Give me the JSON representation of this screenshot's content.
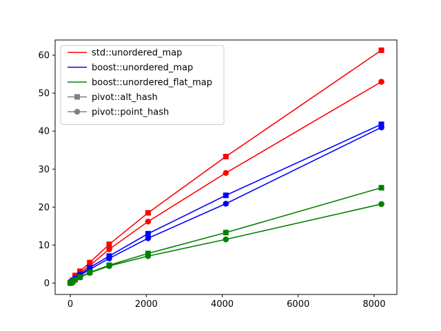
{
  "chart_data": {
    "type": "line",
    "title": "",
    "xlabel": "",
    "ylabel": "",
    "xlim": [
      -400,
      8600
    ],
    "ylim": [
      -3,
      64
    ],
    "xticks": [
      0,
      2000,
      4000,
      6000,
      8000
    ],
    "yticks": [
      0,
      10,
      20,
      30,
      40,
      50,
      60
    ],
    "grid": false,
    "legend_position": "upper-left",
    "x": [
      1,
      2,
      4,
      8,
      16,
      32,
      64,
      128,
      256,
      512,
      1024,
      2048,
      4096,
      8192
    ],
    "series": [
      {
        "implementation": "std::unordered_map",
        "method": "pivot::alt_hash",
        "color": "#ff0000",
        "marker": "square",
        "values": [
          0.02,
          0.03,
          0.05,
          0.08,
          0.15,
          0.35,
          0.75,
          2.0,
          3.1,
          5.4,
          10.2,
          18.5,
          33.3,
          61.3
        ]
      },
      {
        "implementation": "std::unordered_map",
        "method": "pivot::point_hash",
        "color": "#ff0000",
        "marker": "circle",
        "values": [
          0.02,
          0.03,
          0.04,
          0.07,
          0.12,
          0.3,
          0.6,
          1.6,
          2.6,
          4.6,
          8.9,
          16.2,
          29.0,
          53.0
        ]
      },
      {
        "implementation": "boost::unordered_map",
        "method": "pivot::alt_hash",
        "color": "#0000ff",
        "marker": "square",
        "values": [
          0.02,
          0.03,
          0.04,
          0.06,
          0.11,
          0.25,
          0.55,
          1.2,
          2.2,
          4.1,
          7.1,
          13.0,
          23.1,
          41.8
        ]
      },
      {
        "implementation": "boost::unordered_map",
        "method": "pivot::point_hash",
        "color": "#0000ff",
        "marker": "circle",
        "values": [
          0.02,
          0.03,
          0.04,
          0.06,
          0.1,
          0.22,
          0.5,
          1.1,
          2.0,
          3.6,
          6.5,
          11.8,
          20.9,
          41.0
        ]
      },
      {
        "implementation": "boost::unordered_flat_map",
        "method": "pivot::alt_hash",
        "color": "#008000",
        "marker": "square",
        "values": [
          0.01,
          0.02,
          0.03,
          0.05,
          0.08,
          0.18,
          0.4,
          0.9,
          1.6,
          2.8,
          4.7,
          7.8,
          13.3,
          25.1
        ]
      },
      {
        "implementation": "boost::unordered_flat_map",
        "method": "pivot::point_hash",
        "color": "#008000",
        "marker": "circle",
        "values": [
          0.01,
          0.02,
          0.03,
          0.05,
          0.08,
          0.17,
          0.38,
          0.85,
          1.5,
          2.7,
          4.5,
          7.1,
          11.5,
          20.8
        ]
      }
    ],
    "legend": [
      {
        "label": "std::unordered_map",
        "color": "#ff0000",
        "marker": "none"
      },
      {
        "label": "boost::unordered_map",
        "color": "#0000ff",
        "marker": "none"
      },
      {
        "label": "boost::unordered_flat_map",
        "color": "#008000",
        "marker": "none"
      },
      {
        "label": "pivot::alt_hash",
        "color": "#808080",
        "marker": "square"
      },
      {
        "label": "pivot::point_hash",
        "color": "#808080",
        "marker": "circle"
      }
    ]
  }
}
